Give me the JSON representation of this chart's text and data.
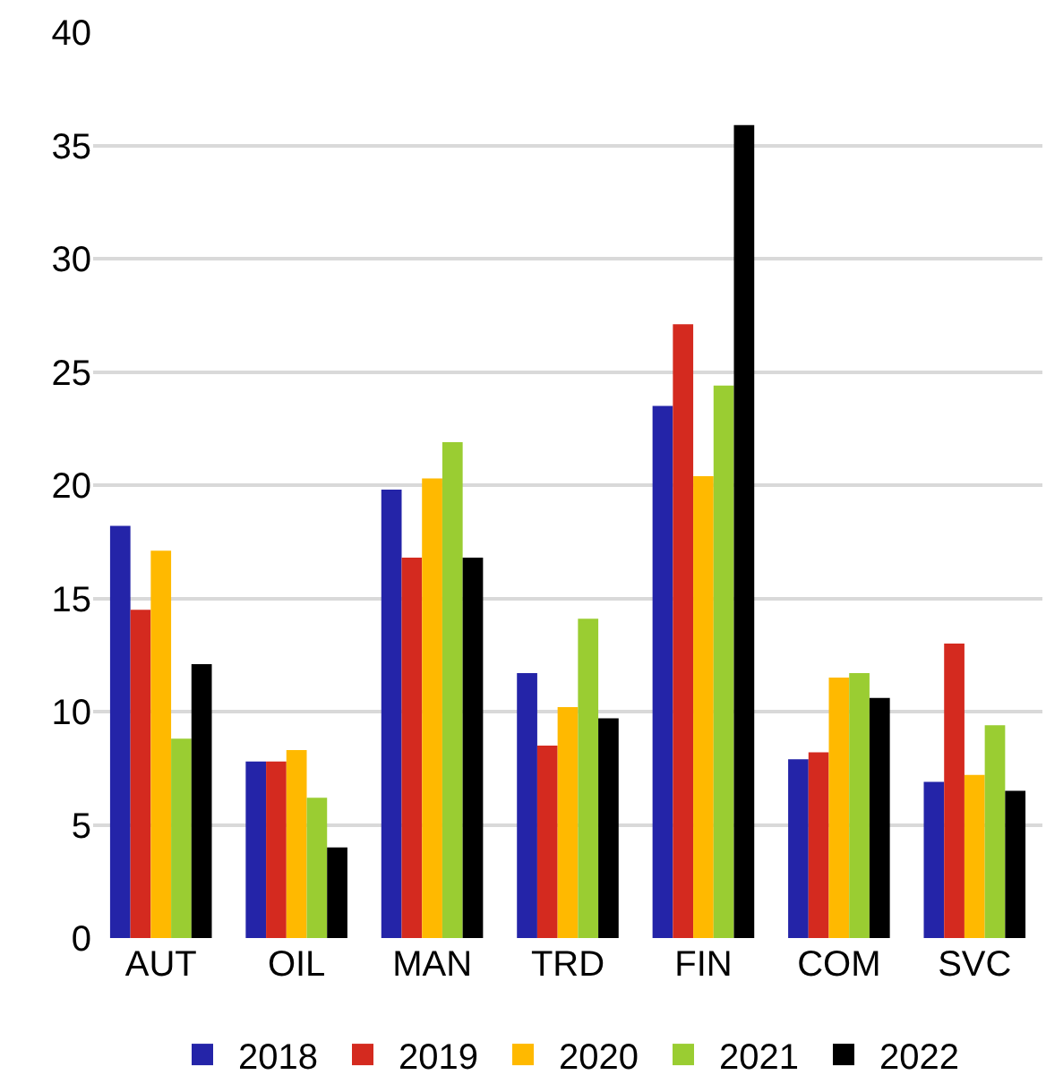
{
  "chart_data": {
    "type": "bar",
    "categories": [
      "AUT",
      "OIL",
      "MAN",
      "TRD",
      "FIN",
      "COM",
      "SVC"
    ],
    "series": [
      {
        "name": "2018",
        "color": "#2424a8",
        "values": [
          18.2,
          7.8,
          19.8,
          11.7,
          23.5,
          7.9,
          6.9
        ]
      },
      {
        "name": "2019",
        "color": "#d42a1f",
        "values": [
          14.5,
          7.8,
          16.8,
          8.5,
          27.1,
          8.2,
          13.0
        ]
      },
      {
        "name": "2020",
        "color": "#ffb900",
        "values": [
          17.1,
          8.3,
          20.3,
          10.2,
          20.4,
          11.5,
          7.2
        ]
      },
      {
        "name": "2021",
        "color": "#9acd32",
        "values": [
          8.8,
          6.2,
          21.9,
          14.1,
          24.4,
          11.7,
          9.4
        ]
      },
      {
        "name": "2022",
        "color": "#000000",
        "values": [
          12.1,
          4.0,
          16.8,
          9.7,
          35.9,
          10.6,
          6.5
        ]
      }
    ],
    "ylim": [
      0,
      40
    ],
    "yticks": [
      0,
      5,
      10,
      15,
      20,
      25,
      30,
      35,
      40
    ],
    "grid": "y",
    "legend": "bottom"
  }
}
